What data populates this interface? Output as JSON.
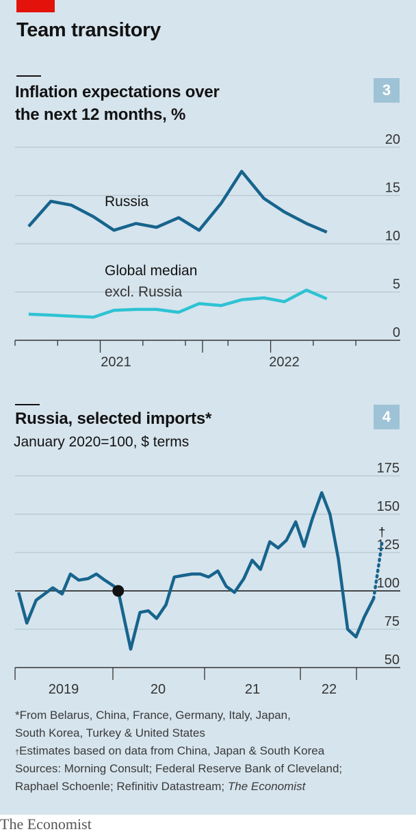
{
  "header": {
    "title": "Team transitory"
  },
  "colors": {
    "russia": "#17648d",
    "global": "#2ec3d3",
    "accent": "#e3120b",
    "panel": "#d6e4ed"
  },
  "chart_data": [
    {
      "type": "line",
      "title": "Inflation expectations over the next 12 months, %",
      "title_line1": "Inflation expectations over",
      "title_line2": "the next 12 months, %",
      "badge": "3",
      "ylim": [
        0,
        20
      ],
      "yticks": [
        "0",
        "5",
        "10",
        "15",
        "20"
      ],
      "xlim": [
        2020.5,
        2022.58
      ],
      "xticks_labeled": [
        {
          "label": "2021",
          "x": 2021.0
        },
        {
          "label": "2022",
          "x": 2022.0
        }
      ],
      "series": [
        {
          "name": "Russia",
          "color": "#17648d",
          "points": [
            [
              2020.58,
              11.8
            ],
            [
              2020.71,
              14.4
            ],
            [
              2020.83,
              14.0
            ],
            [
              2020.96,
              12.8
            ],
            [
              2021.08,
              11.4
            ],
            [
              2021.21,
              12.1
            ],
            [
              2021.33,
              11.7
            ],
            [
              2021.46,
              12.7
            ],
            [
              2021.58,
              11.4
            ],
            [
              2021.71,
              14.2
            ],
            [
              2021.83,
              17.5
            ],
            [
              2021.96,
              14.7
            ],
            [
              2022.08,
              13.3
            ],
            [
              2022.21,
              12.1
            ],
            [
              2022.33,
              11.2
            ]
          ]
        },
        {
          "name": "Global median excl. Russia",
          "label_line1": "Global median",
          "label_line2": "excl. Russia",
          "color": "#2ec3d3",
          "points": [
            [
              2020.58,
              2.7
            ],
            [
              2020.71,
              2.6
            ],
            [
              2020.83,
              2.5
            ],
            [
              2020.96,
              2.4
            ],
            [
              2021.08,
              3.1
            ],
            [
              2021.21,
              3.2
            ],
            [
              2021.33,
              3.2
            ],
            [
              2021.46,
              2.9
            ],
            [
              2021.58,
              3.8
            ],
            [
              2021.71,
              3.6
            ],
            [
              2021.83,
              4.2
            ],
            [
              2021.96,
              4.4
            ],
            [
              2022.08,
              4.0
            ],
            [
              2022.21,
              5.2
            ],
            [
              2022.33,
              4.3
            ]
          ]
        }
      ]
    },
    {
      "type": "line",
      "title": "Russia, selected imports*",
      "subtitle": "January 2020=100, $ terms",
      "badge": "4",
      "ylim": [
        50,
        175
      ],
      "yticks": [
        "50",
        "75",
        "100",
        "125",
        "150",
        "175"
      ],
      "baseline": 100,
      "xlim": [
        2019.0,
        2022.71
      ],
      "xticks_labeled": [
        {
          "label": "2019",
          "x": 2019.5
        },
        {
          "label": "20",
          "x": 2020.5
        },
        {
          "label": "21",
          "x": 2021.5
        },
        {
          "label": "22",
          "x": 2022.33
        }
      ],
      "marker": {
        "x": 2020.0,
        "y": 100
      },
      "dagger": "†",
      "series": [
        {
          "name": "Russia, selected imports",
          "color": "#17648d",
          "points": [
            [
              2019.04,
              99
            ],
            [
              2019.12,
              79
            ],
            [
              2019.21,
              94
            ],
            [
              2019.29,
              98
            ],
            [
              2019.37,
              102
            ],
            [
              2019.46,
              98
            ],
            [
              2019.54,
              111
            ],
            [
              2019.62,
              107
            ],
            [
              2019.71,
              108
            ],
            [
              2019.79,
              111
            ],
            [
              2019.87,
              107
            ],
            [
              2019.96,
              103
            ],
            [
              2020.0,
              100
            ],
            [
              2020.12,
              62
            ],
            [
              2020.21,
              86
            ],
            [
              2020.29,
              87
            ],
            [
              2020.37,
              82
            ],
            [
              2020.46,
              91
            ],
            [
              2020.54,
              109
            ],
            [
              2020.62,
              110
            ],
            [
              2020.71,
              111
            ],
            [
              2020.79,
              111
            ],
            [
              2020.87,
              109
            ],
            [
              2020.96,
              113
            ],
            [
              2021.04,
              103
            ],
            [
              2021.12,
              99
            ],
            [
              2021.21,
              108
            ],
            [
              2021.29,
              120
            ],
            [
              2021.37,
              114
            ],
            [
              2021.46,
              132
            ],
            [
              2021.54,
              128
            ],
            [
              2021.62,
              133
            ],
            [
              2021.71,
              145
            ],
            [
              2021.79,
              129
            ],
            [
              2021.87,
              147
            ],
            [
              2021.96,
              164
            ],
            [
              2022.04,
              150
            ],
            [
              2022.12,
              121
            ],
            [
              2022.21,
              75
            ],
            [
              2022.29,
              70
            ],
            [
              2022.37,
              83
            ],
            [
              2022.46,
              95
            ]
          ],
          "estimate_points": [
            [
              2022.46,
              95
            ],
            [
              2022.54,
              131
            ]
          ]
        }
      ]
    }
  ],
  "notes": {
    "line1": "*From Belarus, China, France, Germany, Italy, Japan,",
    "line2": "South Korea, Turkey & United States",
    "line3_mark": "†",
    "line3": "Estimates based on data from China, Japan & South Korea",
    "line4": "Sources: Morning Consult; Federal Reserve Bank of Cleveland;",
    "line5": "Raphael Schoenle; Refinitiv Datastream;",
    "line5_italic": "The Economist"
  },
  "footer": {
    "brand": "The Economist"
  }
}
